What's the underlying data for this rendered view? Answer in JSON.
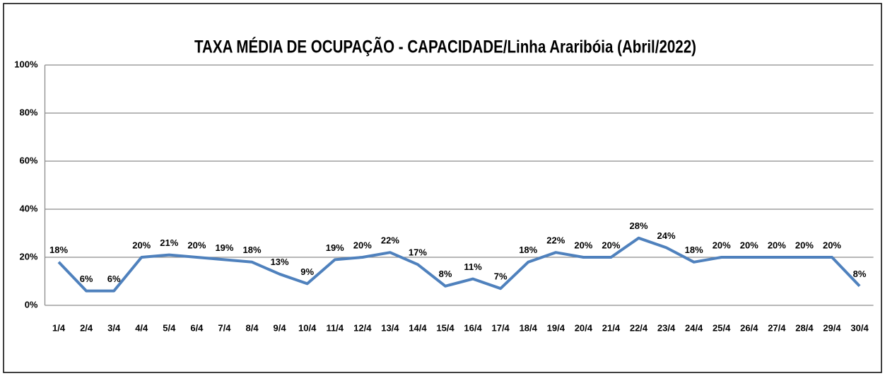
{
  "chart_data": {
    "type": "line",
    "title": "TAXA MÉDIA DE OCUPAÇÃO - CAPACIDADE/Linha Araribóia (Abril/2022)",
    "categories": [
      "1/4",
      "2/4",
      "3/4",
      "4/4",
      "5/4",
      "6/4",
      "7/4",
      "8/4",
      "9/4",
      "10/4",
      "11/4",
      "12/4",
      "13/4",
      "14/4",
      "15/4",
      "16/4",
      "17/4",
      "18/4",
      "19/4",
      "20/4",
      "21/4",
      "22/4",
      "23/4",
      "24/4",
      "25/4",
      "26/4",
      "27/4",
      "28/4",
      "29/4",
      "30/4"
    ],
    "series": [
      {
        "color": "#4f81bd",
        "values": [
          18,
          6,
          6,
          20,
          21,
          20,
          19,
          18,
          13,
          9,
          19,
          20,
          22,
          17,
          8,
          11,
          7,
          18,
          22,
          20,
          20,
          28,
          24,
          18,
          20,
          20,
          20,
          20,
          20,
          8
        ],
        "value_labels": [
          "18%",
          "6%",
          "6%",
          "20%",
          "21%",
          "20%",
          "19%",
          "18%",
          "13%",
          "9%",
          "19%",
          "20%",
          "22%",
          "17%",
          "8%",
          "11%",
          "7%",
          "18%",
          "22%",
          "20%",
          "20%",
          "28%",
          "24%",
          "18%",
          "20%",
          "20%",
          "20%",
          "20%",
          "20%",
          "8%"
        ]
      }
    ],
    "ylim": [
      0,
      100
    ],
    "yticks": [
      {
        "value": 0,
        "label": "0%"
      },
      {
        "value": 20,
        "label": "20%"
      },
      {
        "value": 40,
        "label": "40%"
      },
      {
        "value": 60,
        "label": "60%"
      },
      {
        "value": 80,
        "label": "80%"
      },
      {
        "value": 100,
        "label": "100%"
      }
    ],
    "grid": true
  }
}
